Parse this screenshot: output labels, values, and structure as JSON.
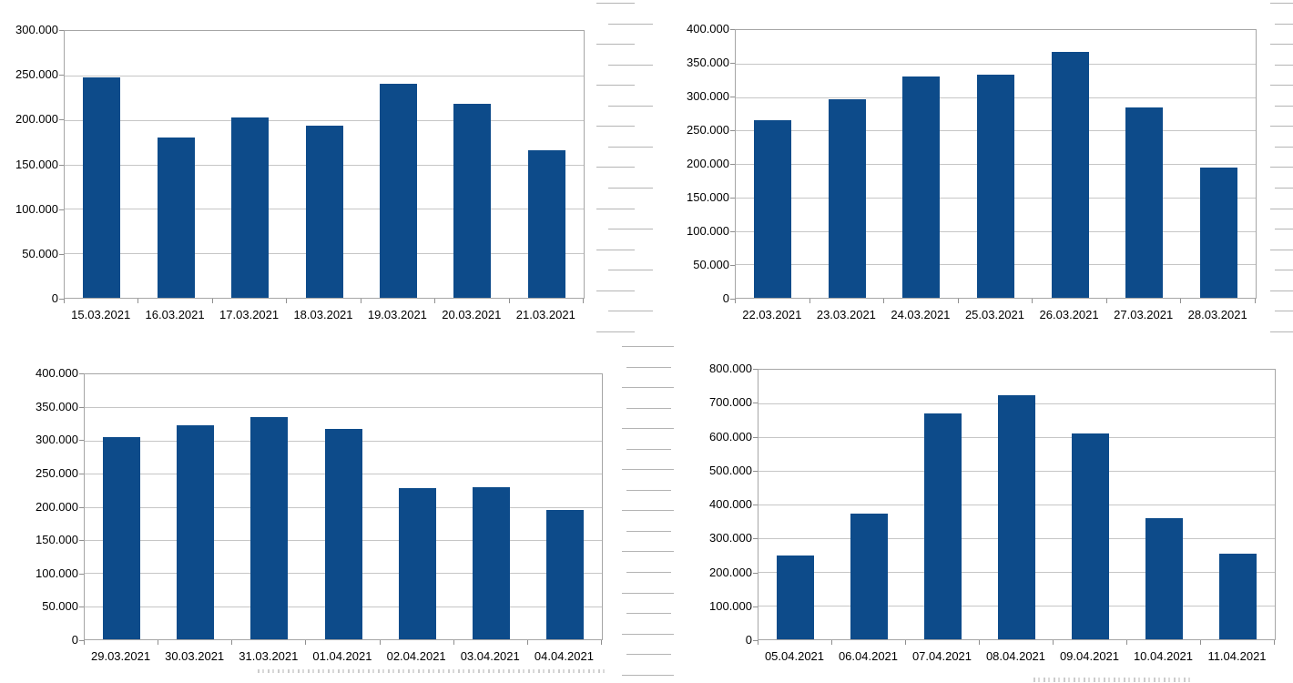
{
  "colors": {
    "bar": "#0d4b8a",
    "plot_border": "#a6a6a6",
    "gridline": "#c6c6c6",
    "tick": "#8f8f8f",
    "label_text": "#000000",
    "sheet_gridline": "#b4b4b4",
    "chart_background": "#ffffff"
  },
  "chart_data": [
    {
      "type": "bar",
      "title": "",
      "legend": "none",
      "grid": "horizontal",
      "categories": [
        "15.03.2021",
        "16.03.2021",
        "17.03.2021",
        "18.03.2021",
        "19.03.2021",
        "20.03.2021",
        "21.03.2021"
      ],
      "values": [
        248000,
        180000,
        203000,
        194000,
        241000,
        218000,
        166000
      ],
      "ylim": [
        0,
        300000
      ],
      "ytick_step": 50000,
      "ytick_labels": [
        "0",
        "50.000",
        "100.000",
        "150.000",
        "200.000",
        "250.000",
        "300.000"
      ],
      "xlabel": "",
      "ylabel": ""
    },
    {
      "type": "bar",
      "title": "",
      "legend": "none",
      "grid": "horizontal",
      "categories": [
        "22.03.2021",
        "23.03.2021",
        "24.03.2021",
        "25.03.2021",
        "26.03.2021",
        "27.03.2021",
        "28.03.2021"
      ],
      "values": [
        265000,
        297000,
        331000,
        333000,
        368000,
        284000,
        195000
      ],
      "ylim": [
        0,
        400000
      ],
      "ytick_step": 50000,
      "ytick_labels": [
        "0",
        "50.000",
        "100.000",
        "150.000",
        "200.000",
        "250.000",
        "300.000",
        "350.000",
        "400.000"
      ],
      "xlabel": "",
      "ylabel": ""
    },
    {
      "type": "bar",
      "title": "",
      "legend": "none",
      "grid": "horizontal",
      "categories": [
        "29.03.2021",
        "30.03.2021",
        "31.03.2021",
        "01.04.2021",
        "02.04.2021",
        "03.04.2021",
        "04.04.2021"
      ],
      "values": [
        305000,
        323000,
        335000,
        317000,
        228000,
        229000,
        195000
      ],
      "ylim": [
        0,
        400000
      ],
      "ytick_step": 50000,
      "ytick_labels": [
        "0",
        "50.000",
        "100.000",
        "150.000",
        "200.000",
        "250.000",
        "300.000",
        "350.000",
        "400.000"
      ],
      "xlabel": "",
      "ylabel": ""
    },
    {
      "type": "bar",
      "title": "",
      "legend": "none",
      "grid": "horizontal",
      "categories": [
        "05.04.2021",
        "06.04.2021",
        "07.04.2021",
        "08.04.2021",
        "09.04.2021",
        "10.04.2021",
        "11.04.2021"
      ],
      "values": [
        248000,
        374000,
        670000,
        723000,
        612000,
        360000,
        254000
      ],
      "ylim": [
        0,
        800000
      ],
      "ytick_step": 100000,
      "ytick_labels": [
        "0",
        "100.000",
        "200.000",
        "300.000",
        "400.000",
        "500.000",
        "600.000",
        "700.000",
        "800.000"
      ],
      "xlabel": "",
      "ylabel": ""
    }
  ]
}
